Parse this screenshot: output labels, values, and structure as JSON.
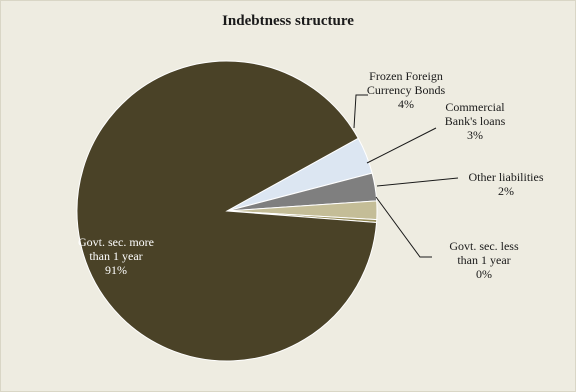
{
  "chart_data": {
    "type": "pie",
    "title": "Indebtness structure",
    "slices": [
      {
        "lines": [
          "Frozen Foreign",
          "Currency Bonds"
        ],
        "pct_label": "4%",
        "value": 4,
        "color": "#dce6f2"
      },
      {
        "lines": [
          "Commercial",
          "Bank's loans"
        ],
        "pct_label": "3%",
        "value": 3,
        "color": "#7f7f7f"
      },
      {
        "lines": [
          "Other liabilities"
        ],
        "pct_label": "2%",
        "value": 2,
        "color": "#c4bd97"
      },
      {
        "lines": [
          "Govt. sec. less",
          "than 1 year"
        ],
        "pct_label": "0%",
        "value": 0.3,
        "color": "#948a54"
      },
      {
        "lines": [
          "Govt. sec. more",
          "than 1 year"
        ],
        "pct_label": "91%",
        "value": 91,
        "color": "#4a4227"
      }
    ],
    "legend": "none"
  }
}
